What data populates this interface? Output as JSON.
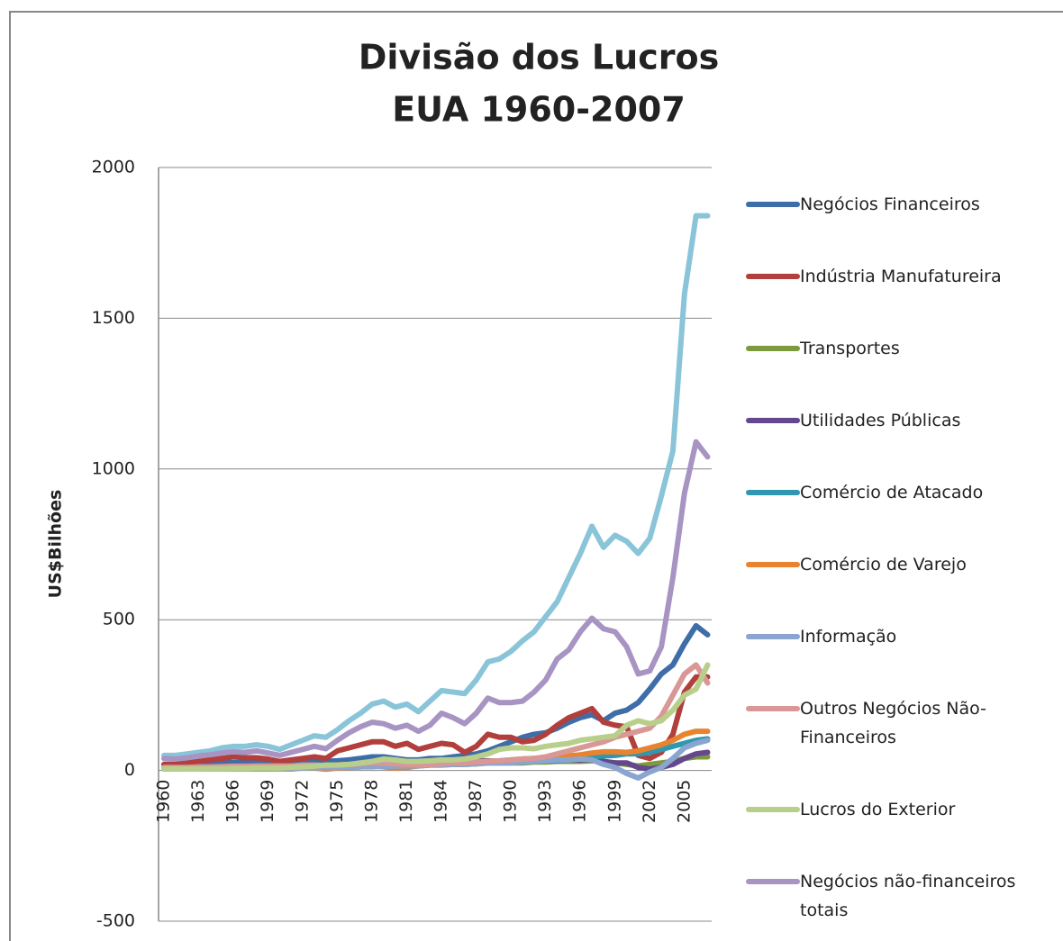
{
  "chart_data": {
    "type": "line",
    "title": [
      "Divisão dos Lucros",
      "EUA 1960-2007"
    ],
    "y_label": "US$Bilhões",
    "categories": [
      "1960",
      null,
      null,
      "1963",
      null,
      null,
      "1966",
      null,
      null,
      "1969",
      null,
      null,
      "1972",
      null,
      null,
      "1975",
      null,
      null,
      "1978",
      null,
      null,
      "1981",
      null,
      null,
      "1984",
      null,
      null,
      "1987",
      null,
      null,
      "1990",
      null,
      null,
      "1993",
      null,
      null,
      "1996",
      null,
      null,
      "1999",
      null,
      null,
      "2002",
      null,
      null,
      "2005",
      null,
      null
    ],
    "ylim": [
      -500,
      2000
    ],
    "yticks": [
      -500,
      0,
      500,
      1000,
      1500,
      2000
    ],
    "grid": true,
    "series": [
      {
        "color": "#89c4d9",
        "values": [
          50,
          50,
          55,
          60,
          65,
          75,
          80,
          80,
          85,
          80,
          70,
          85,
          100,
          115,
          110,
          135,
          165,
          190,
          220,
          230,
          210,
          220,
          195,
          230,
          265,
          260,
          255,
          300,
          360,
          370,
          395,
          430,
          460,
          510,
          560,
          640,
          720,
          810,
          740,
          780,
          760,
          720,
          770,
          910,
          1060,
          1580,
          1840,
          1840
        ]
      },
      {
        "name": "Negócios Financeiros",
        "color": "#3e6da8",
        "values": [
          20,
          20,
          22,
          24,
          25,
          25,
          26,
          26,
          28,
          28,
          28,
          30,
          32,
          34,
          30,
          32,
          35,
          40,
          45,
          45,
          40,
          35,
          35,
          40,
          40,
          45,
          50,
          55,
          65,
          80,
          95,
          110,
          120,
          125,
          140,
          160,
          175,
          185,
          165,
          190,
          200,
          225,
          270,
          320,
          350,
          420,
          480,
          450
        ]
      },
      {
        "name": "Indústria Manufatureira",
        "color": "#b13f3c",
        "values": [
          20,
          20,
          25,
          30,
          35,
          40,
          45,
          42,
          42,
          38,
          30,
          35,
          40,
          45,
          40,
          65,
          75,
          85,
          95,
          95,
          80,
          90,
          70,
          80,
          90,
          85,
          60,
          80,
          120,
          110,
          110,
          95,
          100,
          120,
          150,
          175,
          190,
          205,
          160,
          150,
          145,
          50,
          40,
          60,
          120,
          260,
          310,
          310
        ]
      },
      {
        "name": "Transportes",
        "color": "#7c9a3e",
        "values": [
          5,
          5,
          5,
          5,
          5,
          5,
          5,
          5,
          5,
          5,
          5,
          5,
          8,
          8,
          8,
          10,
          10,
          12,
          15,
          15,
          15,
          15,
          15,
          18,
          18,
          20,
          20,
          22,
          25,
          25,
          25,
          25,
          28,
          28,
          30,
          30,
          30,
          32,
          30,
          25,
          20,
          15,
          20,
          25,
          30,
          40,
          45,
          45
        ]
      },
      {
        "name": "Utilidades Públicas",
        "color": "#65478d",
        "values": [
          8,
          8,
          9,
          9,
          10,
          10,
          10,
          10,
          10,
          10,
          10,
          10,
          10,
          12,
          12,
          15,
          15,
          18,
          20,
          20,
          20,
          22,
          25,
          28,
          30,
          32,
          32,
          32,
          32,
          30,
          30,
          30,
          32,
          32,
          35,
          35,
          35,
          35,
          30,
          25,
          25,
          10,
          5,
          10,
          20,
          40,
          55,
          60
        ]
      },
      {
        "name": "Comércio de Atacado",
        "color": "#2f98b0",
        "values": [
          5,
          5,
          5,
          6,
          6,
          7,
          7,
          7,
          8,
          8,
          8,
          8,
          10,
          12,
          12,
          12,
          14,
          15,
          16,
          17,
          17,
          18,
          18,
          20,
          22,
          22,
          22,
          25,
          28,
          30,
          28,
          28,
          30,
          32,
          32,
          35,
          40,
          45,
          48,
          50,
          55,
          55,
          60,
          70,
          80,
          90,
          100,
          105
        ]
      },
      {
        "name": "Comércio de Varejo",
        "color": "#e8842f",
        "values": [
          5,
          5,
          5,
          6,
          6,
          7,
          7,
          8,
          8,
          8,
          6,
          8,
          8,
          8,
          4,
          8,
          10,
          12,
          15,
          12,
          8,
          10,
          15,
          20,
          22,
          22,
          25,
          28,
          30,
          32,
          35,
          38,
          40,
          42,
          45,
          48,
          52,
          58,
          62,
          62,
          60,
          65,
          75,
          85,
          100,
          120,
          130,
          130
        ]
      },
      {
        "name": "Informação",
        "color": "#8aa5cf",
        "values": [
          5,
          5,
          5,
          5,
          6,
          6,
          6,
          6,
          7,
          7,
          7,
          8,
          8,
          9,
          9,
          10,
          10,
          12,
          12,
          14,
          14,
          15,
          15,
          18,
          18,
          20,
          20,
          22,
          25,
          25,
          25,
          28,
          30,
          32,
          35,
          35,
          38,
          35,
          20,
          10,
          -10,
          -25,
          -5,
          10,
          40,
          75,
          90,
          100
        ]
      },
      {
        "name": "Outros Negócios Não-Financeiros",
        "color": "#d99796",
        "values": [
          10,
          10,
          10,
          12,
          12,
          13,
          14,
          14,
          15,
          15,
          15,
          15,
          18,
          18,
          16,
          18,
          20,
          22,
          25,
          25,
          22,
          20,
          18,
          20,
          22,
          25,
          25,
          28,
          30,
          32,
          35,
          38,
          40,
          45,
          55,
          65,
          75,
          85,
          95,
          110,
          120,
          130,
          140,
          180,
          250,
          320,
          350,
          290
        ]
      },
      {
        "name": "Lucros do Exterior",
        "color": "#b7cf8b",
        "values": [
          5,
          5,
          5,
          5,
          6,
          6,
          7,
          7,
          8,
          8,
          8,
          10,
          12,
          14,
          18,
          18,
          20,
          25,
          30,
          38,
          35,
          30,
          30,
          32,
          35,
          35,
          38,
          45,
          55,
          70,
          75,
          75,
          72,
          80,
          85,
          90,
          100,
          105,
          110,
          115,
          150,
          165,
          155,
          165,
          200,
          250,
          270,
          350
        ]
      },
      {
        "name": "Negócios não-financeiros totais",
        "color": "#a894c3",
        "values": [
          40,
          38,
          42,
          48,
          52,
          58,
          62,
          60,
          65,
          58,
          50,
          60,
          70,
          80,
          72,
          100,
          125,
          145,
          160,
          155,
          140,
          150,
          130,
          150,
          190,
          175,
          155,
          190,
          240,
          225,
          225,
          230,
          260,
          300,
          370,
          400,
          460,
          505,
          470,
          460,
          410,
          320,
          330,
          410,
          640,
          920,
          1090,
          1040
        ]
      }
    ]
  }
}
